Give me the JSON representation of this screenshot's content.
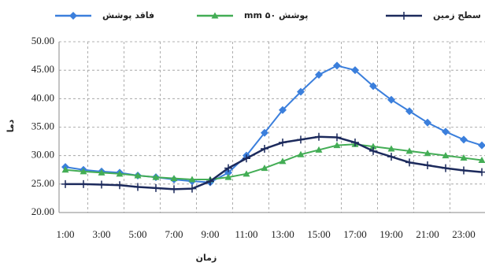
{
  "chart_data": {
    "type": "line",
    "x_label": "زمان",
    "y_label": "دما",
    "categories": [
      "1:00",
      null,
      "3:00",
      null,
      "5:00",
      null,
      "7:00",
      null,
      "9:00",
      null,
      "11:00",
      null,
      "13:00",
      null,
      "15:00",
      null,
      "17:00",
      null,
      "19:00",
      null,
      "21:00",
      null,
      "23:00",
      null
    ],
    "series": [
      {
        "name": "فاقد پوشش",
        "color": "#3b7fdc",
        "marker": "diamond",
        "values": [
          28,
          27.5,
          27.2,
          27,
          26.5,
          26.2,
          25.8,
          25.5,
          25.3,
          27,
          30,
          34,
          38,
          41.2,
          44.2,
          45.8,
          45,
          42.2,
          39.8,
          37.8,
          35.8,
          34.2,
          32.8,
          31.8
        ]
      },
      {
        "name": "پوشش ۵۰ mm",
        "color": "#43ad55",
        "marker": "triangle",
        "values": [
          27.5,
          27.2,
          27,
          26.8,
          26.5,
          26.2,
          26,
          25.8,
          25.8,
          26.2,
          26.8,
          27.8,
          29,
          30.2,
          31,
          31.8,
          32,
          31.6,
          31.2,
          30.8,
          30.4,
          30,
          29.6,
          29.2
        ]
      },
      {
        "name": "سطح زمین",
        "color": "#1c2a5c",
        "marker": "plus",
        "values": [
          25,
          25,
          24.9,
          24.8,
          24.5,
          24.3,
          24.1,
          24.2,
          25.5,
          27.8,
          29.5,
          31.2,
          32.3,
          32.8,
          33.3,
          33.2,
          32.3,
          30.8,
          29.8,
          28.8,
          28.3,
          27.8,
          27.4,
          27.1
        ]
      }
    ],
    "ylim": [
      20,
      50
    ],
    "yticks": [
      {
        "value": 20,
        "label": "20.00"
      },
      {
        "value": 25,
        "label": "25.00"
      },
      {
        "value": 30,
        "label": "30.00"
      },
      {
        "value": 35,
        "label": "35.00"
      },
      {
        "value": 40,
        "label": "40.00"
      },
      {
        "value": 45,
        "label": "45.00"
      },
      {
        "value": 50,
        "label": "50.00"
      }
    ],
    "grid": true
  }
}
